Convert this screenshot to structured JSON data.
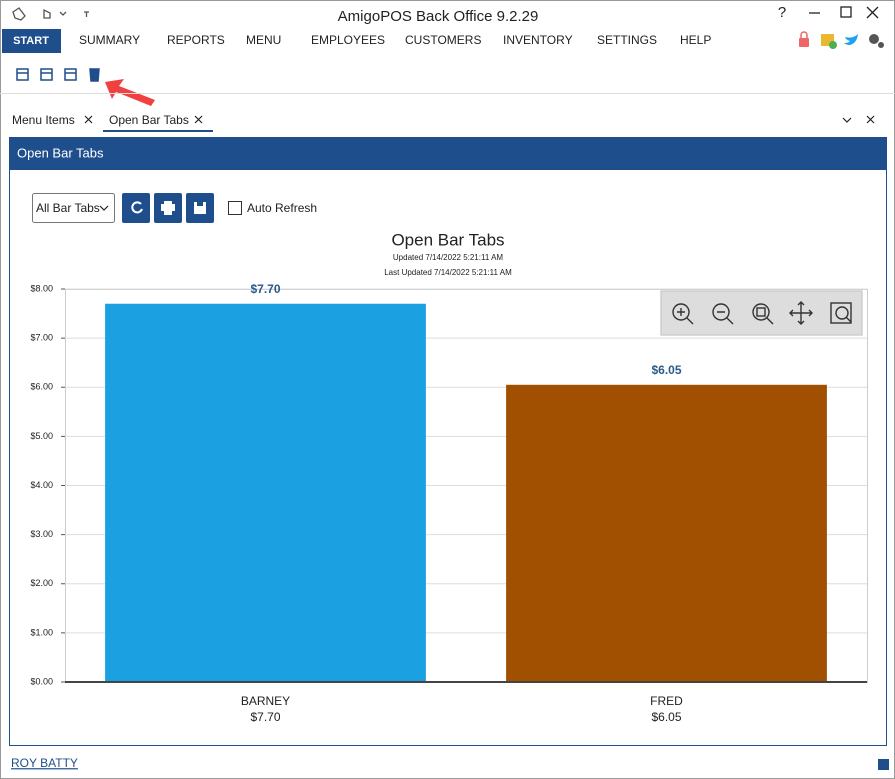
{
  "window": {
    "title": "AmigoPOS Back Office 9.2.29",
    "help": "?"
  },
  "menu": [
    "START",
    "SUMMARY",
    "REPORTS",
    "MENU",
    "EMPLOYEES",
    "CUSTOMERS",
    "INVENTORY",
    "SETTINGS",
    "HELP"
  ],
  "tabs": [
    "Menu Items",
    "Open Bar Tabs"
  ],
  "panel_title": "Open Bar Tabs",
  "toolbar": {
    "dropdown": "All Bar Tabs",
    "checkbox": "Auto Refresh"
  },
  "chart_data": {
    "type": "bar",
    "title": "Open Bar Tabs",
    "subtitles": [
      "Updated 7/14/2022 5:21:11 AM",
      "Last Updated 7/14/2022 5:21:11 AM"
    ],
    "categories": [
      "BARNEY",
      "FRED"
    ],
    "values": [
      7.7,
      6.05
    ],
    "value_labels": [
      "$7.70",
      "$6.05"
    ],
    "colors": [
      "#1ba1e2",
      "#a05000"
    ],
    "ylim": [
      0,
      8
    ],
    "yticks": [
      {
        "value": 0,
        "label": "$0.00"
      },
      {
        "value": 1,
        "label": "$1.00"
      },
      {
        "value": 2,
        "label": "$2.00"
      },
      {
        "value": 3,
        "label": "$3.00"
      },
      {
        "value": 4,
        "label": "$4.00"
      },
      {
        "value": 5,
        "label": "$5.00"
      },
      {
        "value": 6,
        "label": "$6.00"
      },
      {
        "value": 7,
        "label": "$7.00"
      },
      {
        "value": 8,
        "label": "$8.00"
      }
    ],
    "grid": true
  },
  "status_bar": {
    "user": "ROY BATTY"
  }
}
